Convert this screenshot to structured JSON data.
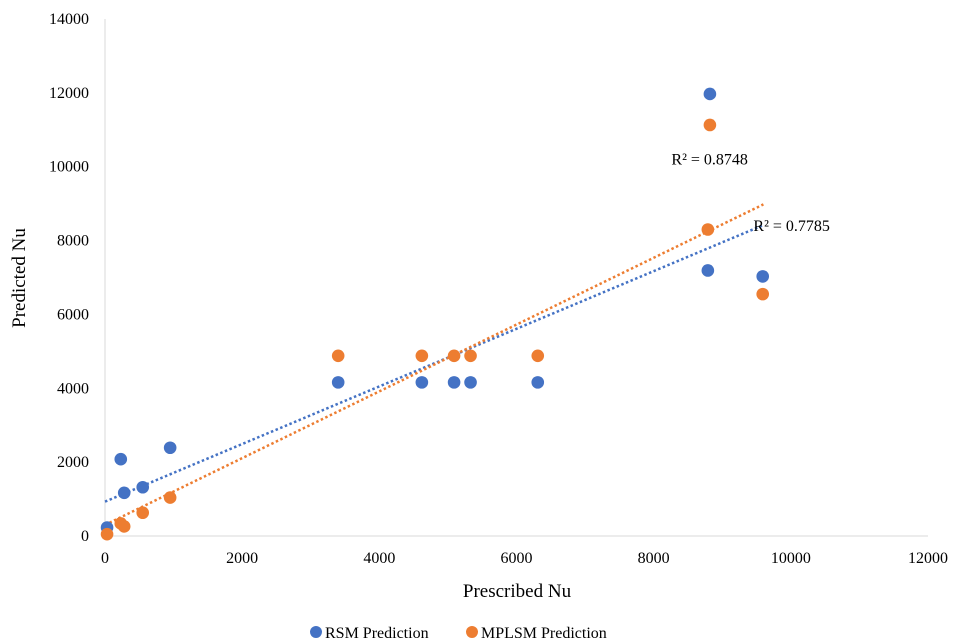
{
  "chart_data": {
    "type": "scatter",
    "title": "",
    "xlabel": "Prescribed Nu",
    "ylabel": "Predicted Nu",
    "xlim": [
      0,
      12000
    ],
    "ylim": [
      0,
      14000
    ],
    "x_ticks": [
      0,
      2000,
      4000,
      6000,
      8000,
      10000,
      12000
    ],
    "y_ticks": [
      0,
      2000,
      4000,
      6000,
      8000,
      10000,
      12000,
      14000
    ],
    "grid": false,
    "legend_position": "bottom",
    "series": [
      {
        "name": "RSM Prediction",
        "color": "#4472C4",
        "points": [
          [
            30,
            230
          ],
          [
            230,
            2080
          ],
          [
            280,
            1170
          ],
          [
            550,
            1320
          ],
          [
            950,
            2390
          ],
          [
            3400,
            4160
          ],
          [
            4620,
            4160
          ],
          [
            5090,
            4160
          ],
          [
            5330,
            4160
          ],
          [
            6310,
            4160
          ],
          [
            8790,
            7190
          ],
          [
            8820,
            11970
          ],
          [
            9590,
            7030
          ]
        ],
        "trendline": {
          "type": "linear",
          "x_range": [
            0,
            9600
          ],
          "y_range": [
            930,
            8420
          ],
          "r2_label": "R² = 0.7785"
        }
      },
      {
        "name": "MPLSM Prediction",
        "color": "#ED7D31",
        "points": [
          [
            30,
            50
          ],
          [
            230,
            340
          ],
          [
            280,
            260
          ],
          [
            550,
            630
          ],
          [
            950,
            1040
          ],
          [
            3400,
            4880
          ],
          [
            4620,
            4880
          ],
          [
            5090,
            4880
          ],
          [
            5330,
            4880
          ],
          [
            6310,
            4880
          ],
          [
            8790,
            8300
          ],
          [
            8820,
            11130
          ],
          [
            9590,
            6550
          ]
        ],
        "trendline": {
          "type": "linear",
          "x_range": [
            0,
            9600
          ],
          "y_range": [
            300,
            8980
          ],
          "r2_label": "R² = 0.8748"
        }
      }
    ]
  }
}
